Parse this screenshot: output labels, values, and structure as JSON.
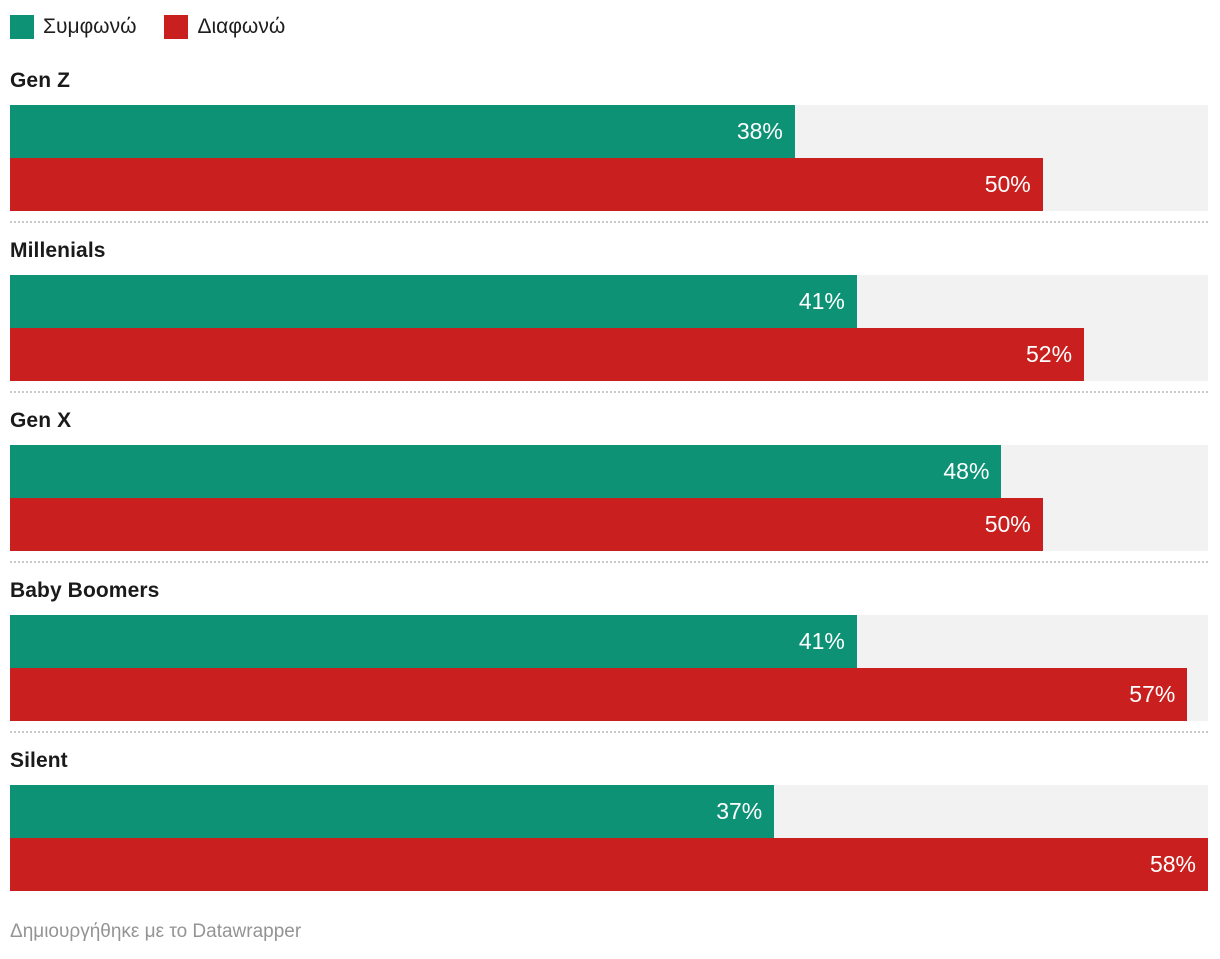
{
  "chart_data": {
    "type": "bar",
    "orientation": "horizontal",
    "grouped": true,
    "title": "",
    "categories": [
      "Gen Z",
      "Millenials",
      "Gen X",
      "Baby Boomers",
      "Silent"
    ],
    "series": [
      {
        "name": "Συμφωνώ",
        "color": "#0d9276",
        "values": [
          38,
          41,
          48,
          41,
          37
        ]
      },
      {
        "name": "Διαφωνώ",
        "color": "#c9201f",
        "values": [
          50,
          52,
          50,
          57,
          58
        ]
      }
    ],
    "value_suffix": "%",
    "xlim": [
      0,
      58
    ],
    "track_color": "#f2f2f2",
    "value_label_color": "#ffffff",
    "legend_position": "top-left",
    "grid": false
  },
  "footer": {
    "attribution": "Δημιουργήθηκε με το Datawrapper"
  },
  "colors": {
    "agree": "#0d9276",
    "disagree": "#c9201f",
    "track": "#f2f2f2",
    "divider": "#c9c9c9",
    "title_text": "#1a1a1a",
    "footer_text": "#949494"
  }
}
